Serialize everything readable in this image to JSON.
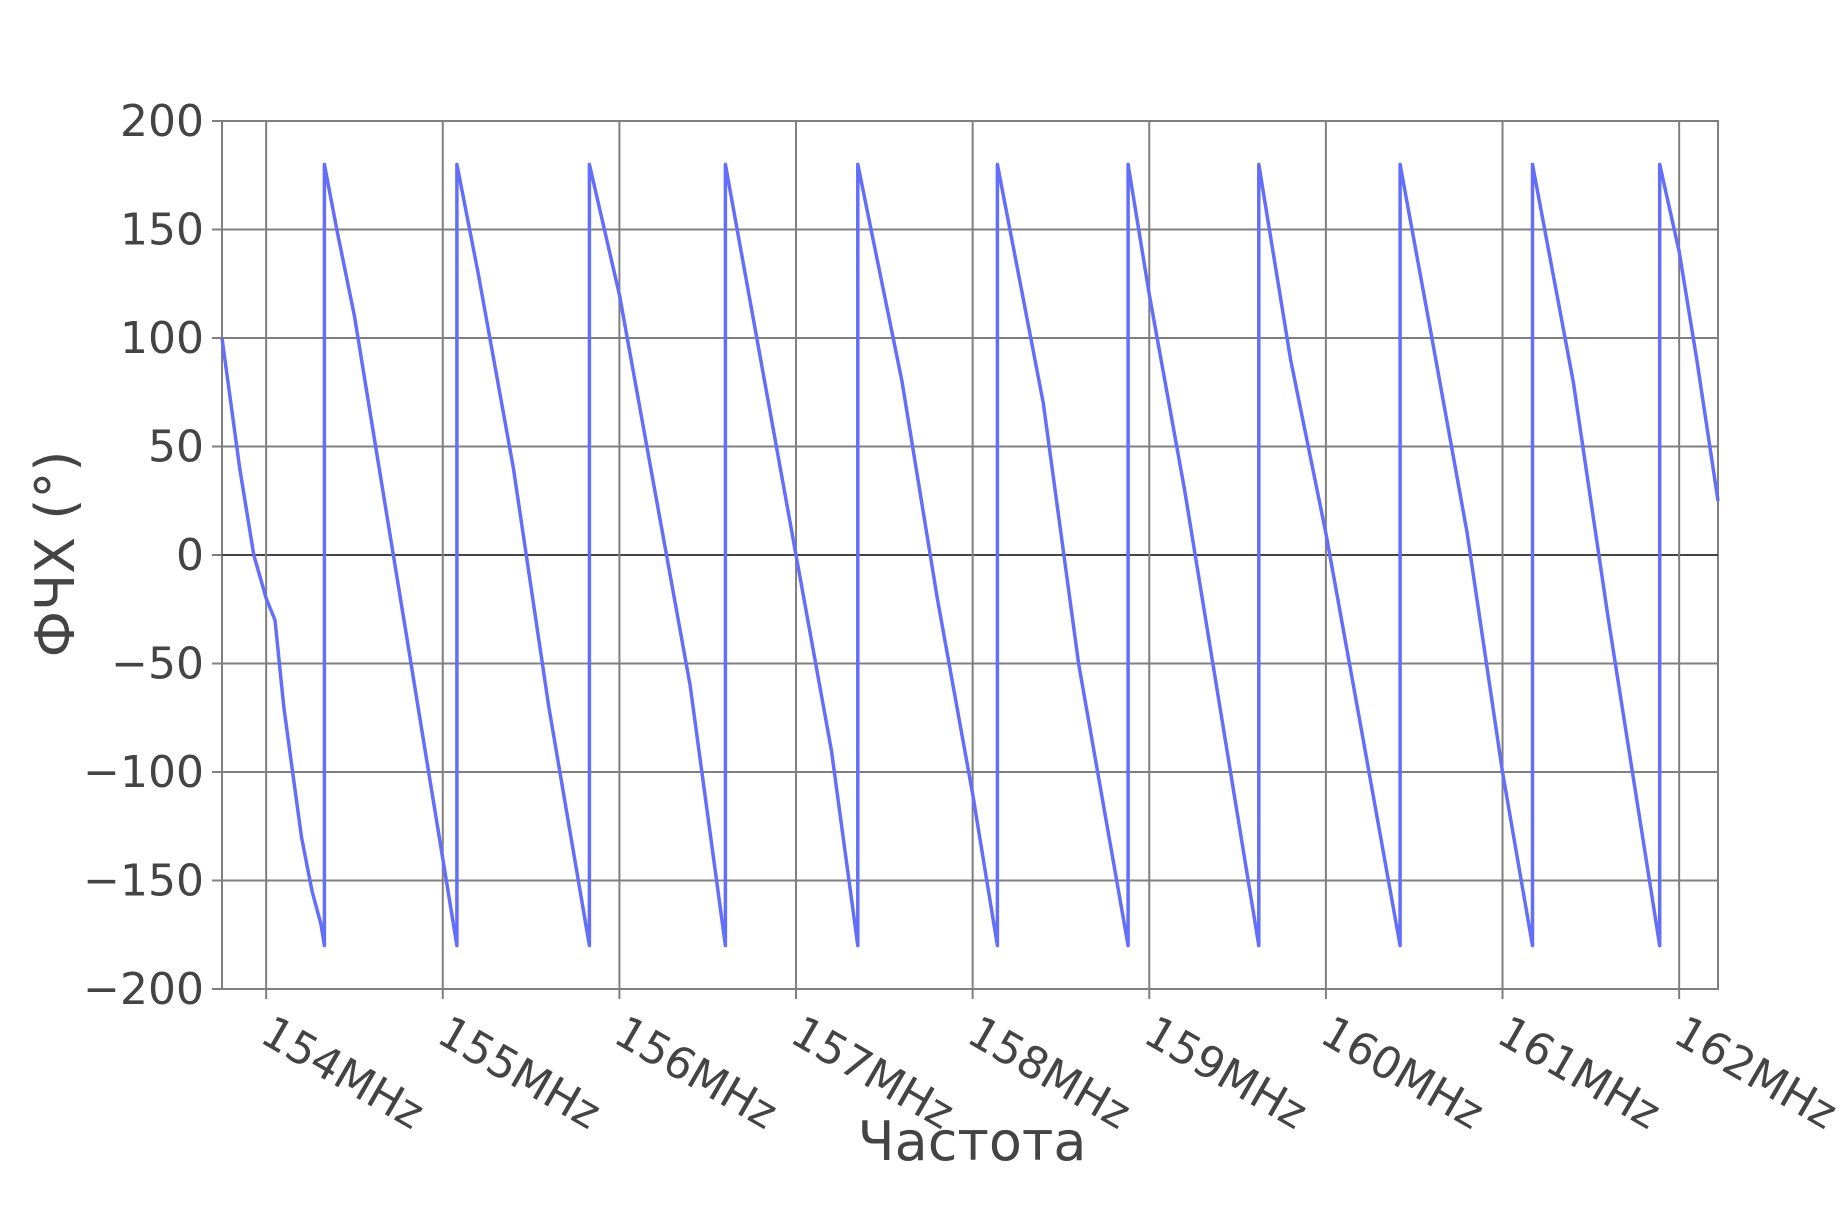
{
  "chart_data": {
    "type": "line",
    "title": "",
    "xlabel": "Частота",
    "ylabel": "ФЧХ (°)",
    "x_unit": "MHz",
    "xlim": [
      153.75,
      162.22
    ],
    "ylim": [
      -200,
      200
    ],
    "x_ticks": [
      154,
      155,
      156,
      157,
      158,
      159,
      160,
      161,
      162
    ],
    "x_tick_labels": [
      "154MHz",
      "155MHz",
      "156MHz",
      "157MHz",
      "158MHz",
      "159MHz",
      "160MHz",
      "161MHz",
      "162MHz"
    ],
    "y_ticks": [
      200,
      150,
      100,
      50,
      0,
      -50,
      -100,
      -150,
      -200
    ],
    "y_tick_labels": [
      "200",
      "150",
      "100",
      "50",
      "0",
      "−50",
      "−100",
      "−150",
      "−200"
    ],
    "grid": true,
    "legend": "none",
    "series": [
      {
        "color": "#636efa",
        "x": [
          153.75,
          153.85,
          153.93,
          154.0,
          154.05,
          154.1,
          154.15,
          154.2,
          154.26,
          154.31,
          154.33,
          154.33,
          154.4,
          154.5,
          154.6,
          154.7,
          154.8,
          154.9,
          155.0,
          155.08,
          155.08,
          155.2,
          155.4,
          155.6,
          155.83,
          155.83,
          156.0,
          156.2,
          156.4,
          156.6,
          156.6,
          156.8,
          157.0,
          157.2,
          157.35,
          157.35,
          157.6,
          157.8,
          158.0,
          158.14,
          158.14,
          158.4,
          158.6,
          158.88,
          158.88,
          159.0,
          159.2,
          159.4,
          159.62,
          159.62,
          159.8,
          160.0,
          160.2,
          160.42,
          160.42,
          160.6,
          160.8,
          161.0,
          161.17,
          161.17,
          161.4,
          161.6,
          161.89,
          161.89,
          162.0,
          162.1,
          162.22
        ],
        "y": [
          100,
          40,
          0,
          -20,
          -30,
          -70,
          -100,
          -130,
          -155,
          -170,
          -180,
          180,
          150,
          110,
          60,
          10,
          -40,
          -90,
          -140,
          -180,
          180,
          130,
          40,
          -70,
          -180,
          180,
          120,
          30,
          -60,
          -180,
          180,
          90,
          0,
          -90,
          -180,
          180,
          80,
          -20,
          -110,
          -180,
          180,
          70,
          -50,
          -180,
          180,
          120,
          30,
          -70,
          -180,
          180,
          90,
          10,
          -80,
          -180,
          180,
          100,
          10,
          -100,
          -180,
          180,
          80,
          -30,
          -180,
          180,
          140,
          90,
          25
        ]
      }
    ]
  }
}
